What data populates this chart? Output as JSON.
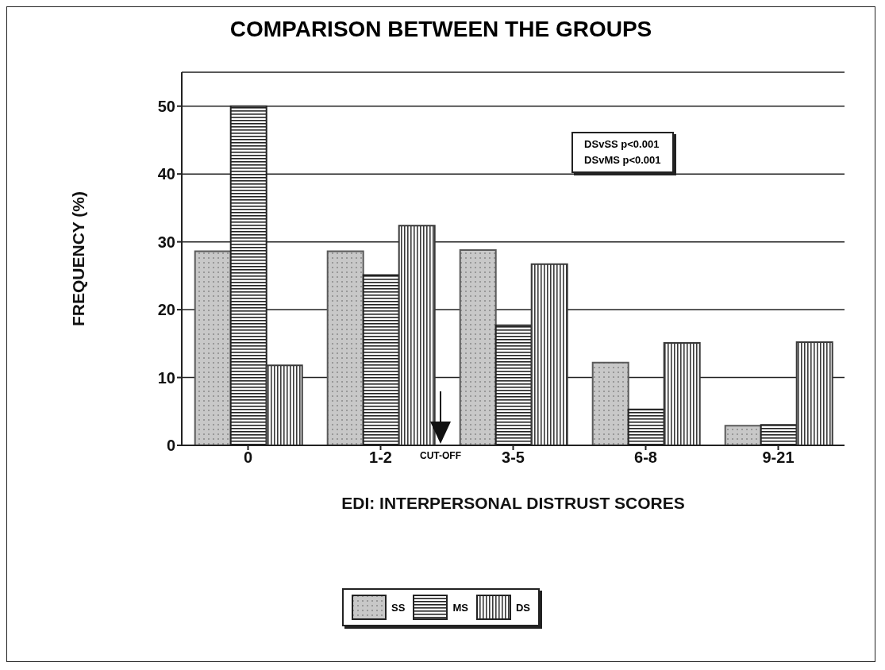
{
  "chart_data": {
    "type": "bar",
    "title": "COMPARISON BETWEEN THE GROUPS",
    "xlabel": "EDI: INTERPERSONAL DISTRUST SCORES",
    "ylabel": "FREQUENCY (%)",
    "categories": [
      "0",
      "1-2",
      "3-5",
      "6-8",
      "9-21"
    ],
    "series": [
      {
        "name": "SS",
        "color": "#5a5a5a",
        "values": [
          28.6,
          28.6,
          28.8,
          12.2,
          2.9
        ]
      },
      {
        "name": "MS",
        "color": "#222222",
        "values": [
          50,
          25.1,
          17.7,
          5.3,
          3.0
        ]
      },
      {
        "name": "DS",
        "color": "#3a3a3a",
        "values": [
          11.8,
          32.4,
          26.7,
          15.1,
          15.2
        ]
      }
    ],
    "ylim": [
      0,
      55
    ],
    "yticks": [
      0,
      10,
      20,
      30,
      40,
      50
    ],
    "grid": "y",
    "legend": "bottom",
    "annotations": [
      "DSvSS p<0.001",
      "DSvMS p<0.001",
      "CUT-OFF"
    ]
  }
}
